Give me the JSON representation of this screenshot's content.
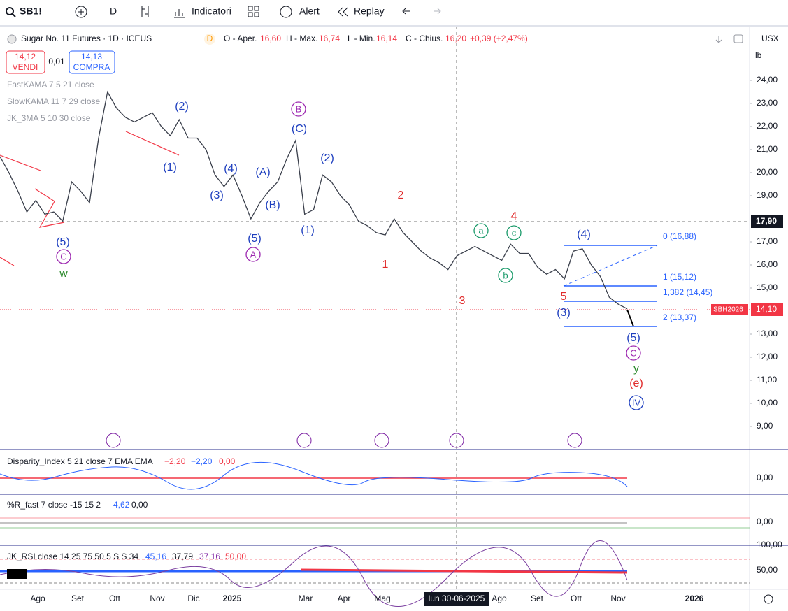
{
  "toolbar": {
    "symbol": "SB1!",
    "interval": "D",
    "indicators": "Indicatori",
    "alert": "Alert",
    "replay": "Replay"
  },
  "legend": {
    "title": "Sugar No. 11 Futures · 1D · ICEUS",
    "badge": "D",
    "open_label": "O - Aper.",
    "open": "16,60",
    "high_label": "H - Max.",
    "high": "16,74",
    "low_label": "L - Min.",
    "low": "16,14",
    "close_label": "C - Chius.",
    "close": "16,20",
    "change": "+0,39 (+2,47%)"
  },
  "trade": {
    "sell_price": "14,12",
    "sell_label": "VENDI",
    "spread": "0,01",
    "buy_price": "14,13",
    "buy_label": "COMPRA"
  },
  "overlays": [
    "FastKAMA 7 5 21 close",
    "SlowKAMA 11 7 29 close",
    "JK_3MA 5 10 30 close"
  ],
  "price_axis": {
    "currency": "USX",
    "unit": "lb",
    "ticks": [
      {
        "value": 24,
        "label": "24,00"
      },
      {
        "value": 23,
        "label": "23,00"
      },
      {
        "value": 22,
        "label": "22,00"
      },
      {
        "value": 21,
        "label": "21,00"
      },
      {
        "value": 20,
        "label": "20,00"
      },
      {
        "value": 19,
        "label": "19,00"
      },
      {
        "value": 17,
        "label": "17,00"
      },
      {
        "value": 16,
        "label": "16,00"
      },
      {
        "value": 15,
        "label": "15,00"
      },
      {
        "value": 13,
        "label": "13,00"
      },
      {
        "value": 12,
        "label": "12,00"
      },
      {
        "value": 11,
        "label": "11,00"
      },
      {
        "value": 10,
        "label": "10,00"
      },
      {
        "value": 9,
        "label": "9,00"
      }
    ],
    "crosshair_price": "17,90",
    "last_symbol": "SBH2026",
    "last_price": "14,10"
  },
  "fib_levels": [
    "0 (16,88)",
    "1 (15,12)",
    "1,382 (14,45)",
    "2 (13,37)"
  ],
  "wave_labels": [
    "(5)",
    "C",
    "w",
    "(2)",
    "(1)",
    "(4)",
    "(3)",
    "(A)",
    "(B)",
    "(5)",
    "A",
    "B",
    "(C)",
    "(2)",
    "(1)",
    "2",
    "1",
    "3",
    "a",
    "c",
    "b",
    "4",
    "(4)",
    "5",
    "(3)",
    "(5)",
    "C",
    "y",
    "(e)",
    "IV"
  ],
  "price_series": [
    20.7,
    20.0,
    19.2,
    18.3,
    18.8,
    18.2,
    18.3,
    17.9,
    19.6,
    19.2,
    18.7,
    21.5,
    23.5,
    22.8,
    22.4,
    22.2,
    22.4,
    22.6,
    22.0,
    21.6,
    22.3,
    21.5,
    21.5,
    21.0,
    19.9,
    19.4,
    19.9,
    19.0,
    18.0,
    18.7,
    19.2,
    19.6,
    20.6,
    21.4,
    18.2,
    18.4,
    19.9,
    19.6,
    19.0,
    18.6,
    17.9,
    17.7,
    17.4,
    17.3,
    18.0,
    17.4,
    17.0,
    16.6,
    16.3,
    16.1,
    15.8,
    16.4,
    16.6,
    16.8,
    16.6,
    16.4,
    16.2,
    16.9,
    16.5,
    16.5,
    15.9,
    15.6,
    15.8,
    15.4,
    16.6,
    16.7,
    16.0,
    15.5,
    14.6,
    14.3,
    14.1
  ],
  "panes": {
    "disparity": {
      "title": "Disparity_Index 5 21 close 7 EMA EMA",
      "values": [
        "−2,20",
        "−2,20",
        "0,00"
      ],
      "axis": "0,00"
    },
    "pct_r": {
      "title": "%R_fast 7 close -15 15 2",
      "values": [
        "4,62",
        "0,00"
      ],
      "axis": [
        "0,00",
        "100,00"
      ]
    },
    "rsi": {
      "title": "JK_RSI close 14 25 75 50 5 S S 34",
      "values": [
        "45,16",
        "37,79",
        "37,16",
        "50,00"
      ],
      "axis": "50,00"
    }
  },
  "time_axis": {
    "labels": [
      "Ago",
      "Set",
      "Ott",
      "Nov",
      "Dic",
      "2025",
      "Mar",
      "Apr",
      "Mag",
      "Ago",
      "Set",
      "Ott",
      "Nov",
      "2026"
    ],
    "cursor": "lun 30-06-2025"
  }
}
